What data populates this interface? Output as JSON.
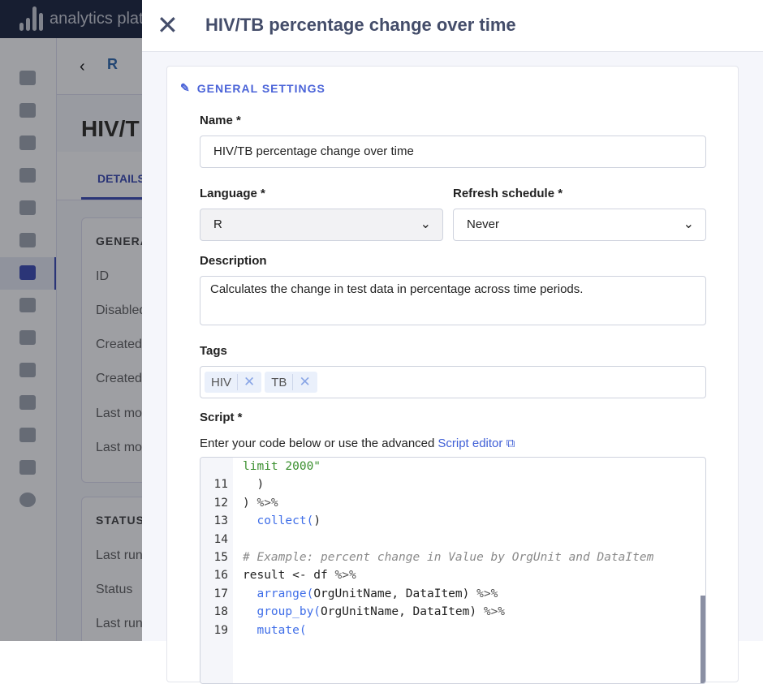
{
  "app": {
    "brand": "analytics platform"
  },
  "background": {
    "title": "HIV/T",
    "tab": "DETAILS",
    "general_card": {
      "heading": "GENERA",
      "rows": [
        "ID",
        "Disabled",
        "Created",
        "Created",
        "Last mo",
        "Last mo"
      ]
    },
    "status_card": {
      "heading": "STATUS",
      "rows": [
        "Last run",
        "Status",
        "Last run"
      ]
    },
    "logo_letter": "R"
  },
  "drawer": {
    "title": "HIV/TB percentage change over time",
    "section": "GENERAL SETTINGS",
    "name": {
      "label": "Name *",
      "value": "HIV/TB percentage change over time"
    },
    "language": {
      "label": "Language *",
      "value": "R"
    },
    "refresh": {
      "label": "Refresh schedule *",
      "value": "Never"
    },
    "description": {
      "label": "Description",
      "value": "Calculates the change in test data in percentage across time periods."
    },
    "tags": {
      "label": "Tags",
      "items": [
        "HIV",
        "TB"
      ]
    },
    "script": {
      "label": "Script *",
      "hint": "Enter your code below or use the advanced",
      "link": "Script editor"
    }
  },
  "code_lines": [
    {
      "n": "",
      "text": "limit 2000\""
    },
    {
      "n": "11",
      "text": "  )"
    },
    {
      "n": "12",
      "text": ") %>%"
    },
    {
      "n": "13",
      "text": "  collect()"
    },
    {
      "n": "14",
      "text": ""
    },
    {
      "n": "15",
      "text": "# Example: percent change in Value by OrgUnit and DataItem"
    },
    {
      "n": "16",
      "text": "result <- df %>%"
    },
    {
      "n": "17",
      "text": "  arrange(OrgUnitName, DataItem) %>%"
    },
    {
      "n": "18",
      "text": "  group_by(OrgUnitName, DataItem) %>%"
    },
    {
      "n": "19",
      "text": "  mutate("
    }
  ],
  "colors": {
    "accent": "#4a63d8",
    "topbar": "#0a1430"
  }
}
